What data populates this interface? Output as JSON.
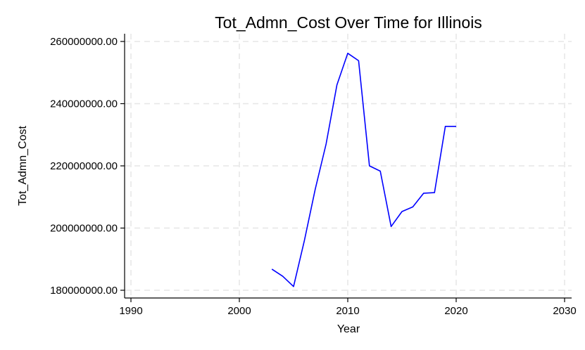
{
  "chart_data": {
    "type": "line",
    "title": "Tot_Admn_Cost Over Time for Illinois",
    "xlabel": "Year",
    "ylabel": "Tot_Admn_Cost",
    "xlim": [
      1990,
      2030
    ],
    "ylim": [
      180000000,
      260000000
    ],
    "xticks": [
      1990,
      2000,
      2010,
      2020,
      2030
    ],
    "yticks": [
      180000000,
      200000000,
      220000000,
      240000000,
      260000000
    ],
    "ytick_labels": [
      "180000000.00",
      "200000000.00",
      "220000000.00",
      "240000000.00",
      "260000000.00"
    ],
    "grid": true,
    "line_color": "#0000ff",
    "series": [
      {
        "x": [
          2003,
          2004,
          2005,
          2006,
          2007,
          2008,
          2009,
          2010,
          2011,
          2012,
          2013,
          2014,
          2015,
          2016,
          2017,
          2018,
          2019,
          2020
        ],
        "values": [
          186800000,
          184500000,
          181200000,
          196000000,
          212500000,
          227000000,
          246000000,
          256200000,
          253800000,
          220000000,
          218300000,
          200500000,
          205300000,
          206800000,
          211200000,
          211400000,
          232700000,
          232700000
        ]
      }
    ]
  }
}
